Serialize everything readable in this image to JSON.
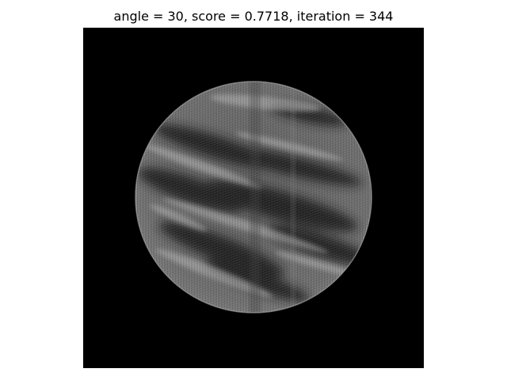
{
  "figure": {
    "title": "angle = 30, score = 0.7718, iteration = 344"
  },
  "colors": {
    "figure_background": "#ffffff",
    "image_background": "#000000",
    "disk_base": "#6e6e6e",
    "dark_streak": "#1a1a1a",
    "light_streak": "#cfcfcf"
  }
}
